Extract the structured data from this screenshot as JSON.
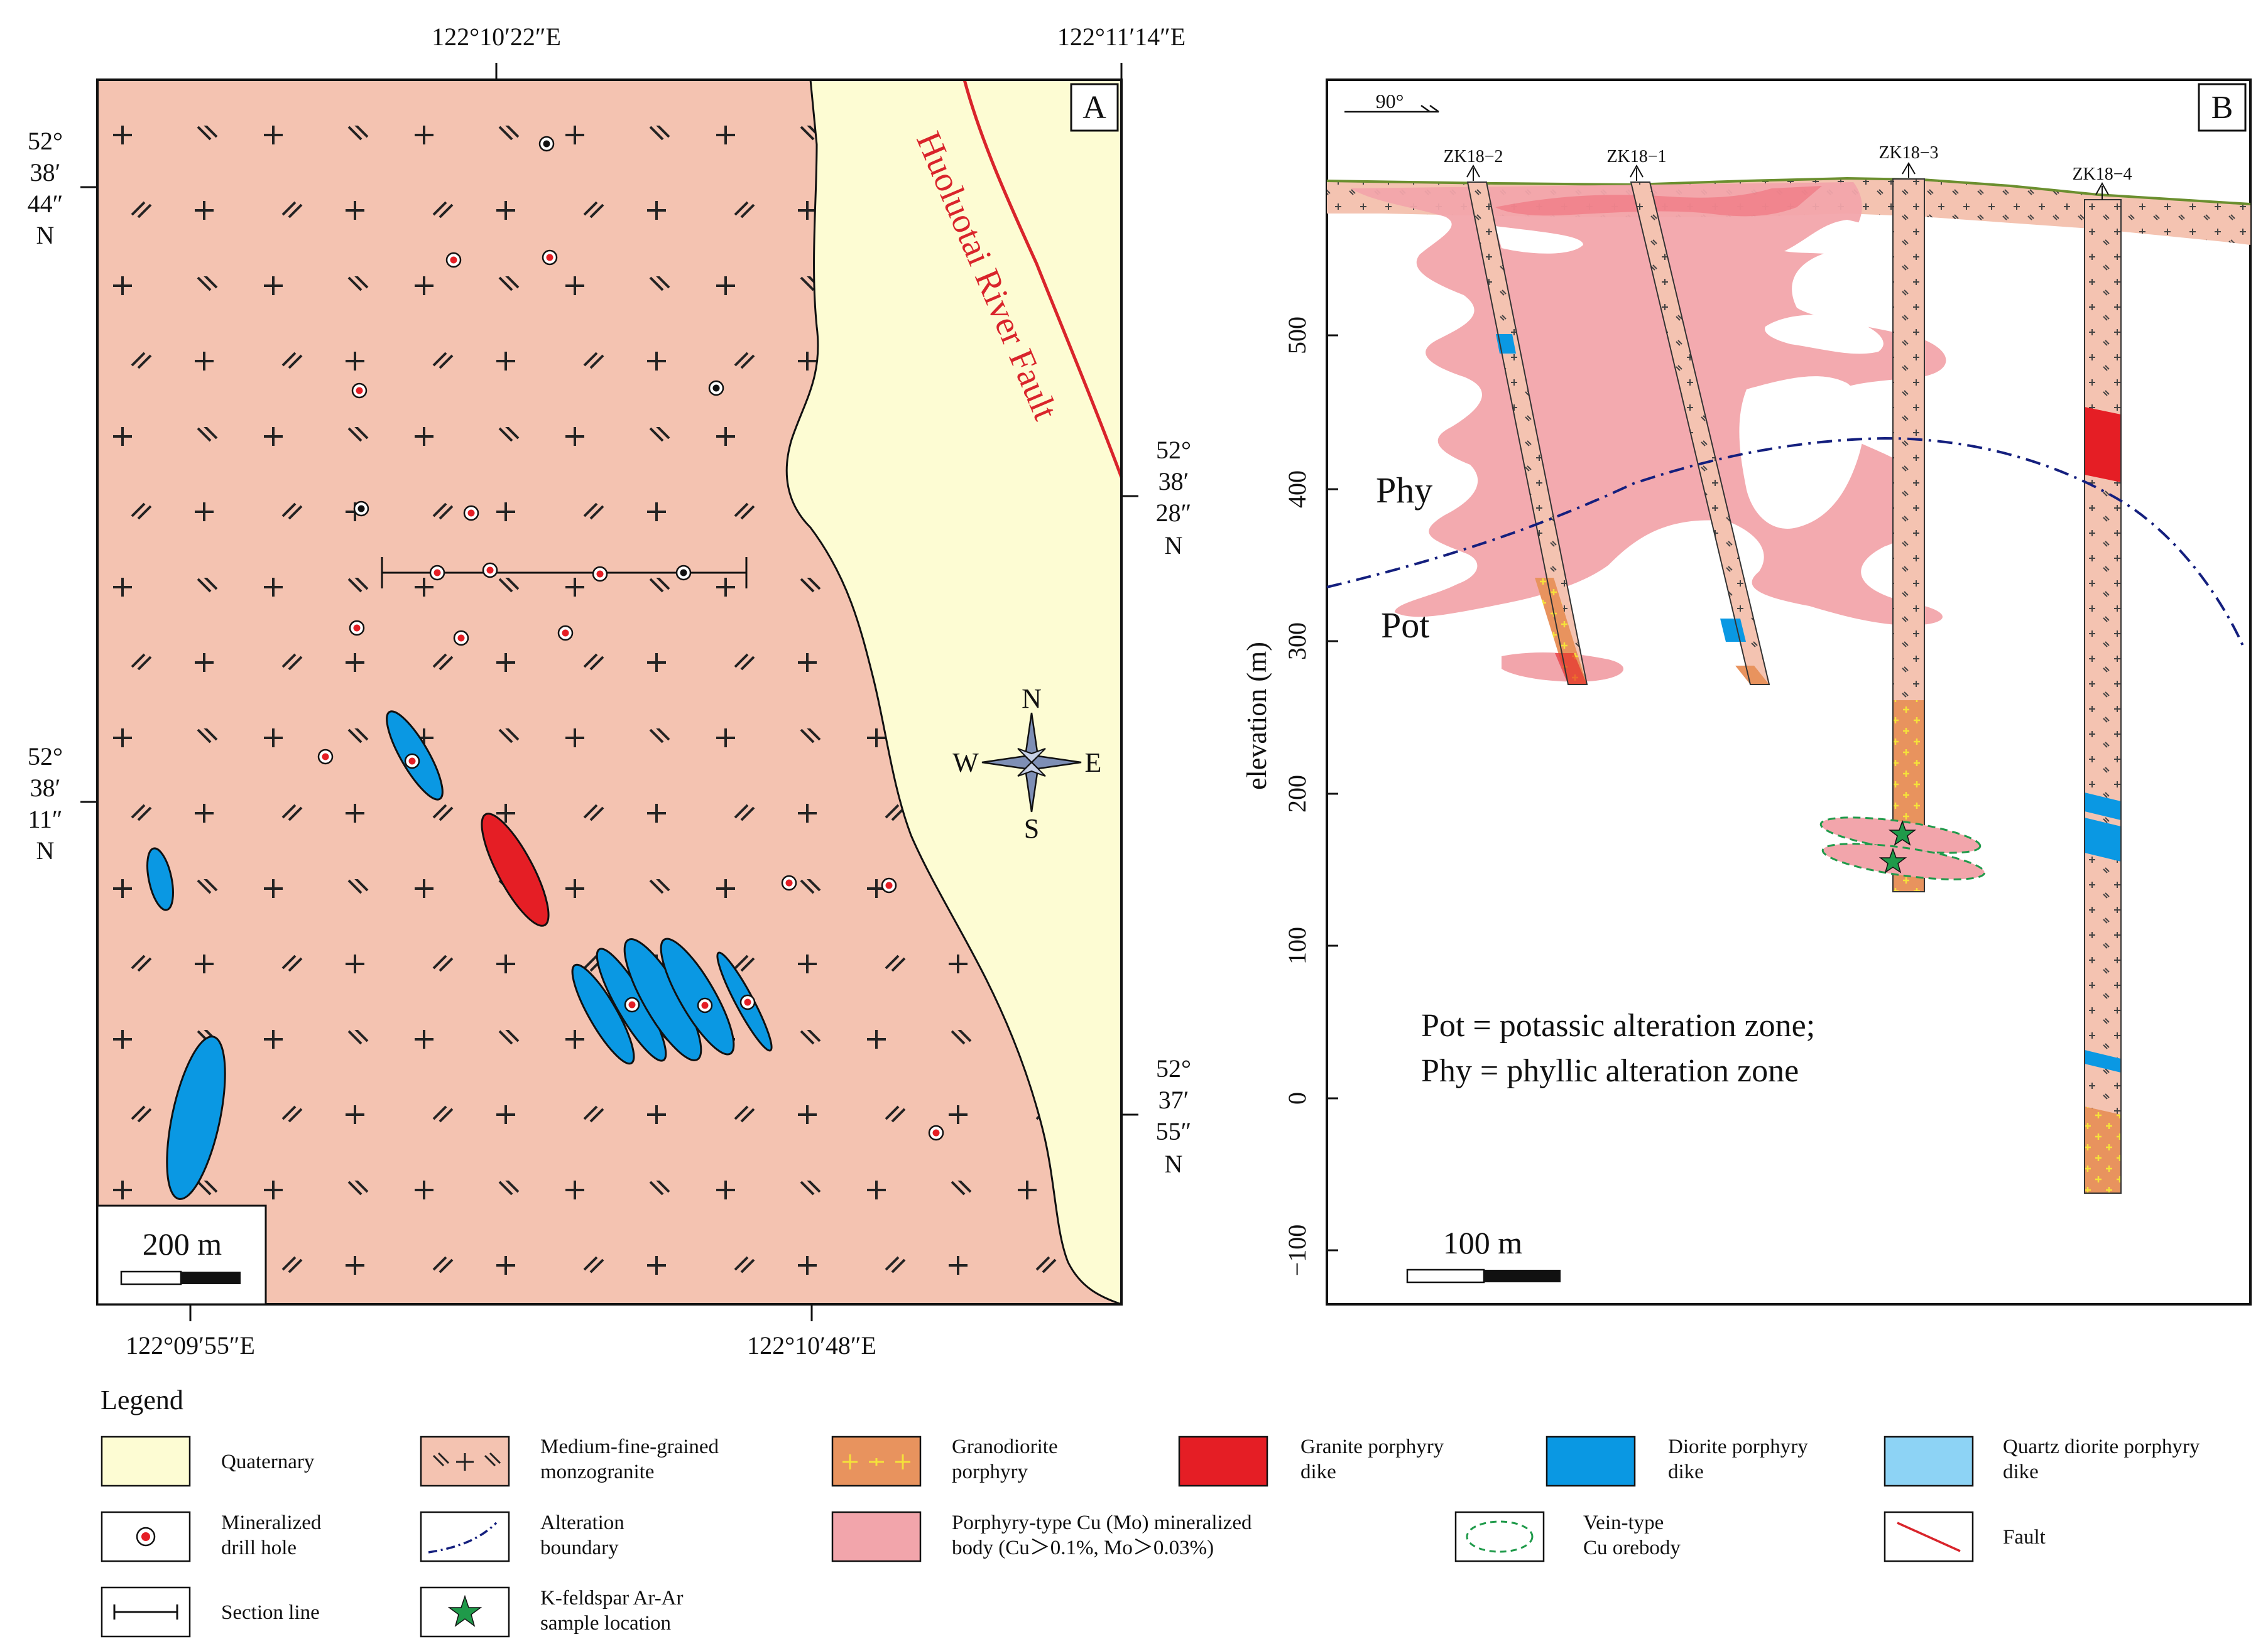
{
  "panel_a": {
    "label": "A",
    "top_coords": [
      "122°10′22″E",
      "122°11′14″E"
    ],
    "bottom_coords": [
      "122°09′55″E",
      "122°10′48″E"
    ],
    "left_coords": [
      {
        "deg": "52°",
        "min": "38′",
        "sec": "44″",
        "hem": "N"
      },
      {
        "deg": "52°",
        "min": "38′",
        "sec": "11″",
        "hem": "N"
      }
    ],
    "right_coords": [
      {
        "deg": "52°",
        "min": "38′",
        "sec": "28″",
        "hem": "N"
      },
      {
        "deg": "52°",
        "min": "37′",
        "sec": "55″",
        "hem": "N"
      }
    ],
    "fault_name": "Huoluotai River Fault",
    "compass": {
      "n": "N",
      "s": "S",
      "e": "E",
      "w": "W"
    },
    "scale_label": "200 m"
  },
  "panel_b": {
    "label": "B",
    "orientation": "90°",
    "drill_holes": [
      "ZK18−2",
      "ZK18−1",
      "ZK18−3",
      "ZK18−4"
    ],
    "y_axis_label": "elevation (m)",
    "y_ticks": [
      "500",
      "400",
      "300",
      "200",
      "100",
      "0",
      "−100"
    ],
    "zone_labels": {
      "phy": "Phy",
      "pot": "Pot"
    },
    "note_line1": "Pot = potassic alteration zone;",
    "note_line2": "Phy = phyllic alteration zone",
    "scale_label": "100 m"
  },
  "legend": {
    "title": "Legend",
    "items": [
      {
        "label": [
          "Quaternary"
        ]
      },
      {
        "label": [
          "Medium-fine-grained",
          "monzogranite"
        ]
      },
      {
        "label": [
          "Granodiorite",
          "porphyry"
        ]
      },
      {
        "label": [
          "Granite porphyry",
          "dike"
        ]
      },
      {
        "label": [
          "Diorite porphyry",
          "dike"
        ]
      },
      {
        "label": [
          "Quartz diorite porphyry",
          "dike"
        ]
      },
      {
        "label": [
          "Mineralized",
          "drill hole"
        ]
      },
      {
        "label": [
          "Alteration",
          "boundary"
        ]
      },
      {
        "label": [
          "Porphyry-type Cu (Mo) mineralized",
          "body (Cu＞0.1%, Mo＞0.03%)"
        ]
      },
      {
        "label": [
          "Vein-type",
          "Cu orebody"
        ]
      },
      {
        "label": [
          "Fault"
        ]
      },
      {
        "label": [
          "Section line"
        ]
      },
      {
        "label": [
          "K-feldspar Ar-Ar",
          "sample location"
        ]
      }
    ]
  },
  "colors": {
    "monzogranite": "#f4c3b1",
    "quaternary": "#fdfcd3",
    "granite_porphyry": "#e51e25",
    "diorite_porphyry": "#0a98e3",
    "quartz_diorite_porphyry": "#8dd3f5",
    "granodiorite": "#e8935e",
    "mineralized_body": "#f2a5ab",
    "fault": "#d9242b",
    "alteration_boundary": "#141f7e",
    "vein": "#1f9a4a"
  }
}
